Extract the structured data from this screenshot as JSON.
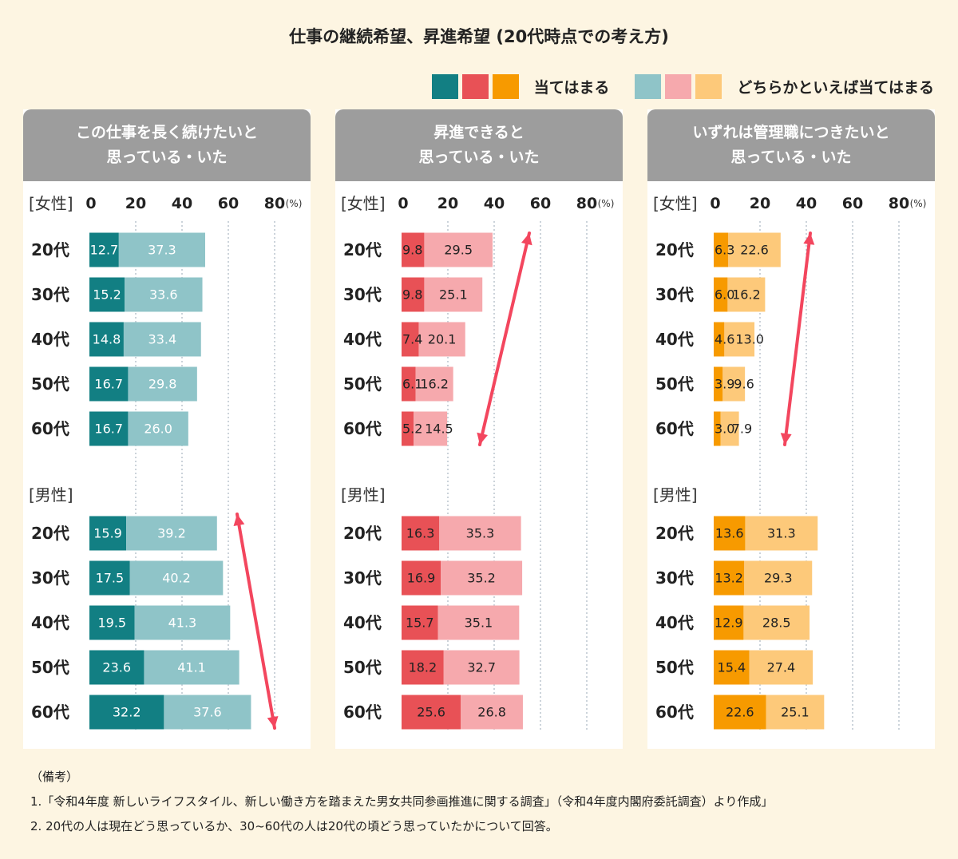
{
  "title": "仕事の継続希望、昇進希望 (20代時点での考え方)",
  "legend": {
    "strong_label": "当てはまる",
    "weak_label": "どちらかといえば当てはまる"
  },
  "colors": {
    "teal_strong": "#127f83",
    "teal_weak": "#8fc4c8",
    "red_strong": "#e85156",
    "red_weak": "#f6a9ad",
    "orange_strong": "#f79a00",
    "orange_weak": "#fdc97a",
    "arrow": "#f3465e"
  },
  "axis": {
    "ticks": [
      "0",
      "20",
      "40",
      "60",
      "80"
    ],
    "unit": "(%)",
    "xlim": [
      0,
      80
    ]
  },
  "group_labels": {
    "female": "[女性]",
    "male": "[男性]"
  },
  "categories": [
    "20代",
    "30代",
    "40代",
    "50代",
    "60代"
  ],
  "chart_data": [
    {
      "type": "bar",
      "title": "この仕事を長く続けたいと\n思っている・いた",
      "palette": "teal",
      "categories": [
        "20代",
        "30代",
        "40代",
        "50代",
        "60代"
      ],
      "female": {
        "strong": [
          "12.7",
          "15.2",
          "14.8",
          "16.7",
          "16.7"
        ],
        "weak": [
          "37.3",
          "33.6",
          "33.4",
          "29.8",
          "26.0"
        ]
      },
      "male": {
        "strong": [
          "15.9",
          "17.5",
          "19.5",
          "23.6",
          "32.2"
        ],
        "weak": [
          "39.2",
          "40.2",
          "41.3",
          "41.1",
          "37.6"
        ]
      },
      "arrow_group": "male",
      "arrow_direction": "down"
    },
    {
      "type": "bar",
      "title": "昇進できると\n思っている・いた",
      "palette": "red",
      "categories": [
        "20代",
        "30代",
        "40代",
        "50代",
        "60代"
      ],
      "female": {
        "strong": [
          "9.8",
          "9.8",
          "7.4",
          "6.1",
          "5.2"
        ],
        "weak": [
          "29.5",
          "25.1",
          "20.1",
          "16.2",
          "14.5"
        ]
      },
      "male": {
        "strong": [
          "16.3",
          "16.9",
          "15.7",
          "18.2",
          "25.6"
        ],
        "weak": [
          "35.3",
          "35.2",
          "35.1",
          "32.7",
          "26.8"
        ]
      },
      "arrow_group": "female",
      "arrow_direction": "up"
    },
    {
      "type": "bar",
      "title": "いずれは管理職につきたいと\n思っている・いた",
      "palette": "orange",
      "categories": [
        "20代",
        "30代",
        "40代",
        "50代",
        "60代"
      ],
      "female": {
        "strong": [
          "6.3",
          "6.0",
          "4.6",
          "3.9",
          "3.0"
        ],
        "weak": [
          "22.6",
          "16.2",
          "13.0",
          "9.6",
          "7.9"
        ]
      },
      "male": {
        "strong": [
          "13.6",
          "13.2",
          "12.9",
          "15.4",
          "22.6"
        ],
        "weak": [
          "31.3",
          "29.3",
          "28.5",
          "27.4",
          "25.1"
        ]
      },
      "arrow_group": "female",
      "arrow_direction": "up"
    }
  ],
  "notes": {
    "heading": "（備考）",
    "line1": "1.「令和4年度 新しいライフスタイル、新しい働き方を踏まえた男女共同参画推進に関する調査」（令和4年度内閣府委託調査）より作成」",
    "line2": "2. 20代の人は現在どう思っているか、30~60代の人は20代の頃どう思っていたかについて回答。"
  }
}
